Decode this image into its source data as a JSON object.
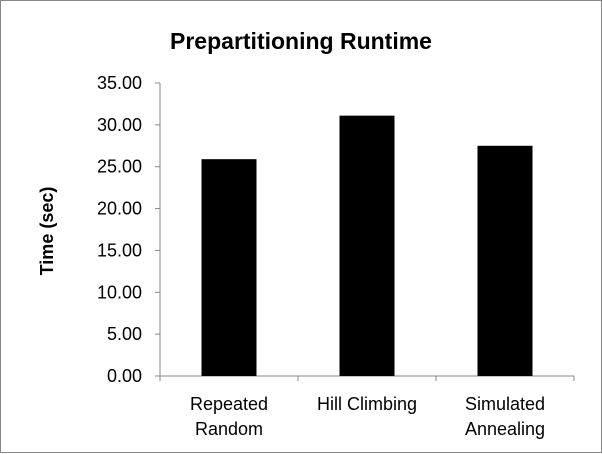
{
  "chart_data": {
    "type": "bar",
    "title": "Prepartitioning Runtime",
    "xlabel": "",
    "ylabel": "Time (sec)",
    "categories": [
      [
        "Repeated",
        "Random"
      ],
      [
        "Hill Climbing"
      ],
      [
        "Simulated",
        "Annealing"
      ]
    ],
    "values": [
      25.9,
      31.1,
      27.5
    ],
    "ylim": [
      0,
      35
    ],
    "yticks": [
      "0.00",
      "5.00",
      "10.00",
      "15.00",
      "20.00",
      "25.00",
      "30.00",
      "35.00"
    ],
    "grid": false,
    "legend": "none",
    "bar_color": "#000000"
  }
}
